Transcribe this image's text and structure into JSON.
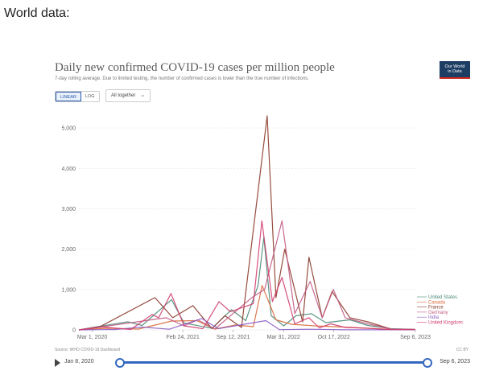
{
  "page": {
    "heading": "World data:"
  },
  "logo": {
    "line1": "Our World",
    "line2": "in Data"
  },
  "controls": {
    "linear_label": "LINEAR",
    "log_label": "LOG",
    "dropdown_label": "All together",
    "scale_selected": "linear"
  },
  "footer": {
    "source": "Source: WHO COVID-19 Dashboard",
    "license": "CC BY"
  },
  "timeline": {
    "start_label": "Jan 8, 2020",
    "end_label": "Sep 6, 2023"
  },
  "colors": {
    "United States": "#4b8a78",
    "Canada": "#d86a3a",
    "France": "#8a3a2a",
    "Germany": "#c25a84",
    "India": "#8a5cc4",
    "United Kingdom": "#d23d6e",
    "grid": "#e6e6e6"
  },
  "chart_data": {
    "type": "line",
    "title": "Daily new confirmed COVID-19 cases per million people",
    "subtitle": "7-day rolling average. Due to limited testing, the number of confirmed cases is lower than the true number of infections.",
    "ylim": [
      0,
      5500
    ],
    "yticks": [
      0,
      1000,
      2000,
      3000,
      4000,
      5000
    ],
    "ytick_labels": [
      "0",
      "1,000",
      "2,000",
      "3,000",
      "4,000",
      "5,000"
    ],
    "xlim": [
      "2020-01-08",
      "2023-09-06"
    ],
    "xticks": [
      "2020-03-01",
      "2021-02-24",
      "2021-09-12",
      "2022-03-31",
      "2022-10-17",
      "2023-09-06"
    ],
    "xtick_labels": [
      "Mar 1, 2020",
      "Feb 24, 2021",
      "Sep 12, 2021",
      "Mar 31, 2022",
      "Oct 17, 2022",
      "Sep 6, 2023"
    ],
    "legend_position": "right",
    "grid": true,
    "series": [
      {
        "name": "United States",
        "x": [
          "2020-01-08",
          "2020-04-01",
          "2020-07-20",
          "2020-09-15",
          "2021-01-10",
          "2021-03-01",
          "2021-06-20",
          "2021-09-05",
          "2021-11-01",
          "2021-12-20",
          "2022-01-12",
          "2022-02-10",
          "2022-04-01",
          "2022-05-20",
          "2022-07-20",
          "2022-09-15",
          "2022-12-20",
          "2023-03-01",
          "2023-06-01",
          "2023-09-06"
        ],
        "values": [
          0,
          90,
          200,
          110,
          750,
          170,
          40,
          500,
          230,
          1100,
          2300,
          350,
          100,
          350,
          400,
          180,
          250,
          110,
          30,
          10
        ]
      },
      {
        "name": "Canada",
        "x": [
          "2020-01-08",
          "2020-05-01",
          "2020-09-01",
          "2021-01-10",
          "2021-04-20",
          "2021-07-01",
          "2021-09-20",
          "2021-12-01",
          "2022-01-05",
          "2022-03-01",
          "2022-05-01",
          "2022-08-01",
          "2023-01-01",
          "2023-06-01",
          "2023-09-06"
        ],
        "values": [
          0,
          40,
          20,
          220,
          230,
          20,
          120,
          80,
          1100,
          250,
          140,
          100,
          60,
          10,
          5
        ]
      },
      {
        "name": "France",
        "x": [
          "2020-01-08",
          "2020-04-01",
          "2020-11-05",
          "2021-01-15",
          "2021-04-05",
          "2021-06-20",
          "2021-08-10",
          "2021-10-15",
          "2022-01-25",
          "2022-03-01",
          "2022-04-05",
          "2022-06-15",
          "2022-07-10",
          "2022-09-01",
          "2022-10-10",
          "2022-12-20",
          "2023-03-01",
          "2023-06-01",
          "2023-09-06"
        ],
        "values": [
          0,
          80,
          800,
          300,
          600,
          30,
          350,
          60,
          5300,
          800,
          2000,
          200,
          1800,
          300,
          950,
          300,
          200,
          20,
          10
        ]
      },
      {
        "name": "Germany",
        "x": [
          "2020-01-08",
          "2020-04-01",
          "2020-12-20",
          "2021-03-01",
          "2021-04-25",
          "2021-07-01",
          "2021-11-25",
          "2022-01-15",
          "2022-03-25",
          "2022-05-15",
          "2022-07-15",
          "2022-09-01",
          "2022-10-15",
          "2022-12-01",
          "2023-03-01",
          "2023-06-01",
          "2023-09-06"
        ],
        "values": [
          0,
          70,
          300,
          100,
          250,
          20,
          800,
          1000,
          2700,
          400,
          1200,
          300,
          1000,
          300,
          150,
          20,
          10
        ]
      },
      {
        "name": "India",
        "x": [
          "2020-01-08",
          "2020-06-01",
          "2020-09-15",
          "2021-01-01",
          "2021-05-10",
          "2021-07-15",
          "2022-01-20",
          "2022-03-15",
          "2022-07-15",
          "2022-12-01",
          "2023-09-06"
        ],
        "values": [
          0,
          10,
          70,
          15,
          280,
          30,
          230,
          5,
          15,
          2,
          1
        ]
      },
      {
        "name": "United Kingdom",
        "x": [
          "2020-01-08",
          "2020-04-15",
          "2020-08-01",
          "2020-10-25",
          "2020-11-20",
          "2021-01-08",
          "2021-03-01",
          "2021-05-15",
          "2021-07-18",
          "2021-09-01",
          "2021-12-01",
          "2022-01-04",
          "2022-02-15",
          "2022-03-25",
          "2022-05-15",
          "2022-07-10",
          "2022-08-20",
          "2022-10-05",
          "2022-12-01",
          "2023-03-01",
          "2023-06-01",
          "2023-09-06"
        ],
        "values": [
          0,
          70,
          10,
          380,
          300,
          900,
          100,
          30,
          700,
          450,
          650,
          2700,
          700,
          1300,
          150,
          300,
          50,
          150,
          60,
          40,
          5,
          5
        ]
      }
    ]
  }
}
